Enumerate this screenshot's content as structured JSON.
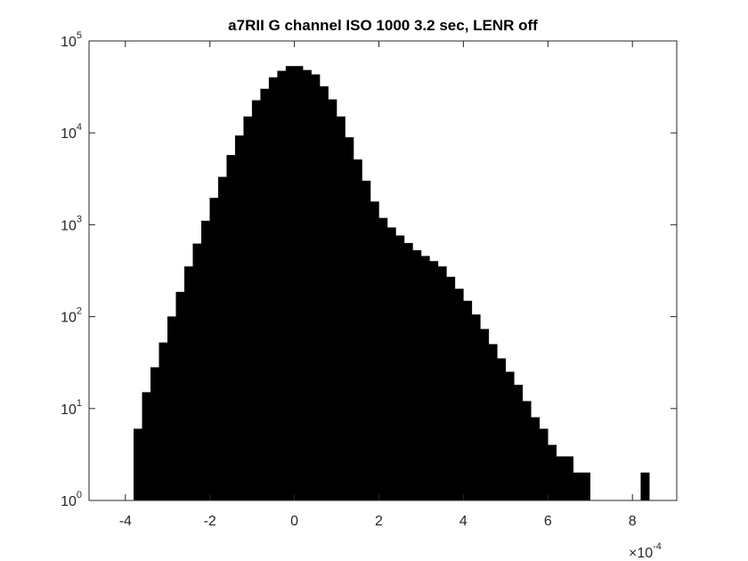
{
  "chart_data": {
    "type": "histogram",
    "title": "a7RII G channel ISO 1000 3.2 sec, LENR off",
    "bins": [
      -3.8,
      -3.6,
      -3.4,
      -3.2,
      -3.0,
      -2.8,
      -2.6,
      -2.4,
      -2.2,
      -2.0,
      -1.8,
      -1.6,
      -1.4,
      -1.2,
      -1.0,
      -0.8,
      -0.6,
      -0.4,
      -0.2,
      0.0,
      0.2,
      0.4,
      0.6,
      0.8,
      1.0,
      1.2,
      1.4,
      1.6,
      1.8,
      2.0,
      2.2,
      2.4,
      2.6,
      2.8,
      3.0,
      3.2,
      3.4,
      3.6,
      3.8,
      4.0,
      4.2,
      4.4,
      4.6,
      4.8,
      5.0,
      5.2,
      5.4,
      5.6,
      5.8,
      6.0,
      6.2,
      6.4,
      6.6,
      6.8,
      7.0,
      7.2,
      7.4,
      7.6,
      7.8,
      8.0,
      8.2,
      8.4
    ],
    "values": [
      6,
      15,
      28,
      52,
      100,
      185,
      350,
      620,
      1100,
      1950,
      3300,
      5700,
      9300,
      15000,
      22500,
      30000,
      40000,
      47000,
      53000,
      53000,
      48000,
      43000,
      32000,
      23000,
      15000,
      8900,
      5100,
      3000,
      1780,
      1180,
      930,
      760,
      630,
      525,
      455,
      400,
      350,
      270,
      200,
      148,
      105,
      73,
      50,
      35,
      25,
      18,
      12,
      8,
      6,
      4,
      3,
      3,
      2,
      2,
      1,
      1,
      0,
      0,
      0,
      1,
      2
    ],
    "color": "#000000",
    "xlim": [
      -4.86,
      9.05
    ],
    "xticks": [
      -4,
      -2,
      0,
      2,
      4,
      6,
      8
    ],
    "x_multiplier": {
      "label": "×10",
      "exponent": "-4"
    },
    "ylim": [
      1,
      100000
    ],
    "log_y": true,
    "yticks": [
      {
        "value": 1,
        "label": "10",
        "exponent": "0"
      },
      {
        "value": 10,
        "label": "10",
        "exponent": "1"
      },
      {
        "value": 100,
        "label": "10",
        "exponent": "2"
      },
      {
        "value": 1000,
        "label": "10",
        "exponent": "3"
      },
      {
        "value": 10000,
        "label": "10",
        "exponent": "4"
      },
      {
        "value": 100000,
        "label": "10",
        "exponent": "5"
      }
    ],
    "grid": false
  }
}
